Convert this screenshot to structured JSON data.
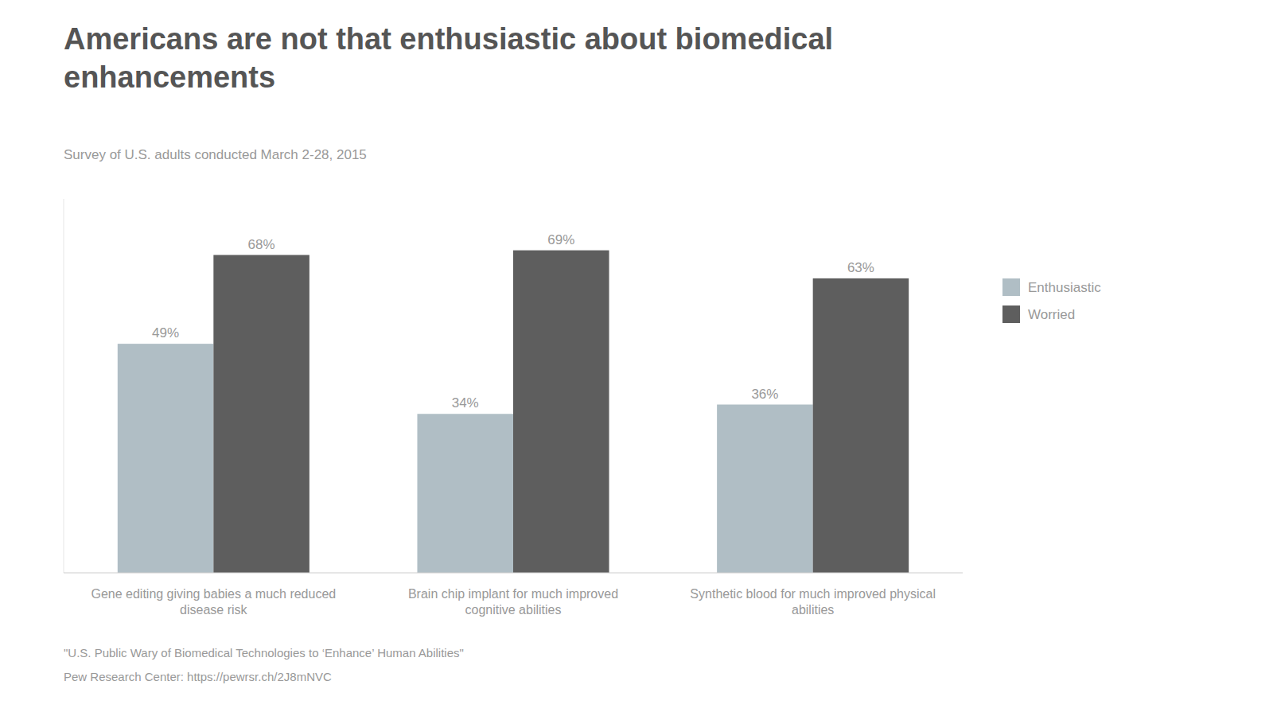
{
  "chart_data": {
    "type": "bar",
    "title": "Americans are not that enthusiastic about biomedical\nenhancements",
    "subtitle": "Survey of U.S. adults conducted March 2-28, 2015",
    "annotations": [
      "\"U.S. Public Wary of Biomedical Technologies to ‘Enhance’ Human Abilities\"",
      "Pew Research Center: https://pewrsr.ch/2J8mNVC"
    ],
    "categories": [
      "Gene editing giving babies a much reduced\ndisease risk",
      "Brain chip implant for much improved\ncognitive abilities",
      "Synthetic blood for much improved physical\nabilities"
    ],
    "series": [
      {
        "name": "Enthusiastic",
        "color": "#b0bec5",
        "values": [
          49,
          34,
          36
        ],
        "value_labels": [
          "49%",
          "34%",
          "36%"
        ]
      },
      {
        "name": "Worried",
        "color": "#5e5e5e",
        "values": [
          68,
          69,
          63
        ],
        "value_labels": [
          "68%",
          "69%",
          "63%"
        ]
      }
    ],
    "ylim": [
      0,
      80
    ],
    "grid": false,
    "legend": "right",
    "data_labels": true,
    "tick_labels": "x"
  }
}
